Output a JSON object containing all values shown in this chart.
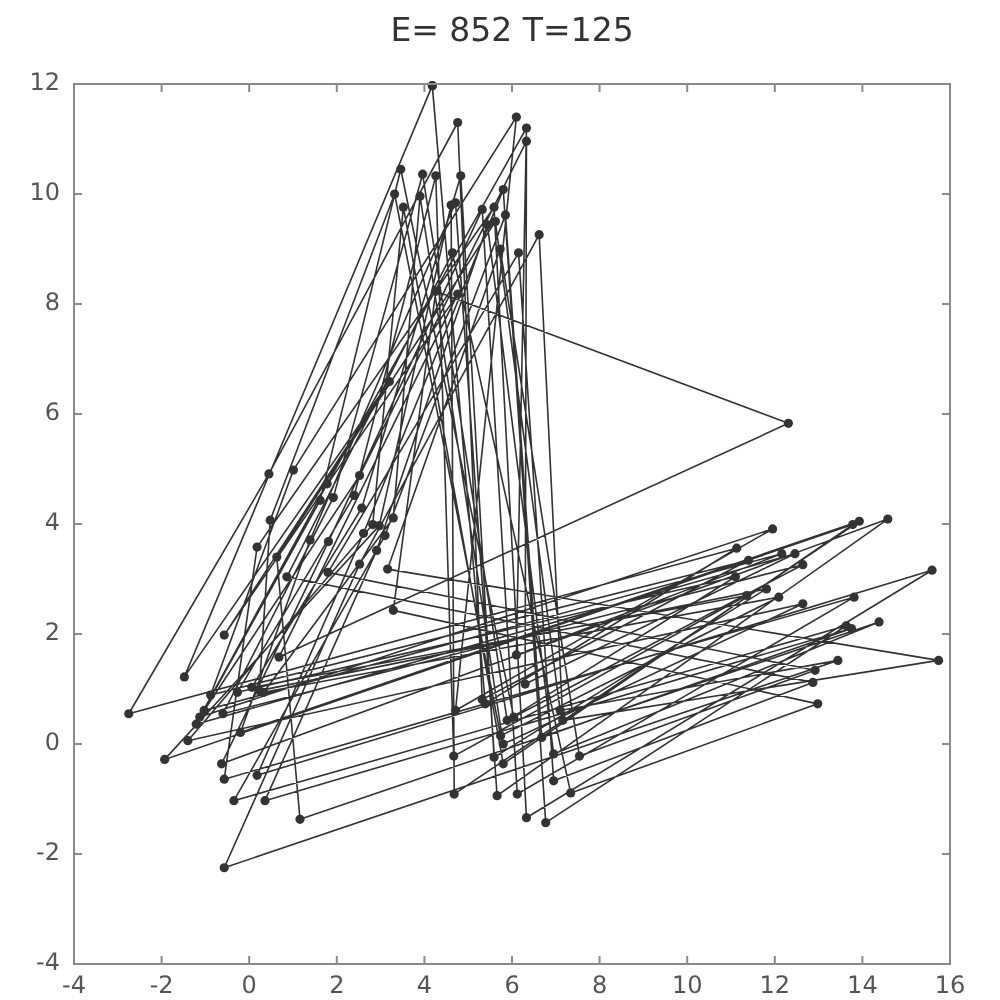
{
  "chart_data": {
    "type": "scatter",
    "title": "E= 852 T=125",
    "marker": "circle",
    "line_style": "solid",
    "x": [
      4.18,
      5.39,
      11.13,
      -2.75,
      0.45,
      4.76,
      5.32,
      11.4,
      -0.88,
      1.01,
      6.1,
      4.71,
      11.95,
      -1.13,
      1.78,
      6.33,
      6.1,
      12.16,
      -1.03,
      2.52,
      6.33,
      6.3,
      12.46,
      -1.21,
      1.62,
      3.46,
      6.04,
      12.64,
      -0.6,
      1.92,
      3.96,
      5.89,
      11.1,
      -0.27,
      2.4,
      4.26,
      4.67,
      11.36,
      0.06,
      2.57,
      4.83,
      5.59,
      11.81,
      0.23,
      0.48,
      3.32,
      5.74,
      12.09,
      0.33,
      3.29,
      3.9,
      5.8,
      12.64,
      -1.4,
      2.82,
      3.52,
      5.8,
      13.78,
      -1.93,
      2.97,
      4.61,
      4.68,
      13.93,
      -0.2,
      1.39,
      4.71,
      5.66,
      14.58,
      -0.63,
      1.81,
      5.32,
      6.12,
      13.81,
      -0.57,
      0.18,
      5.59,
      6.33,
      15.59,
      0.18,
      2.61,
      5.8,
      6.77,
      13.63,
      -0.35,
      3.1,
      5.85,
      6.68,
      13.75,
      0.36,
      2.91,
      5.44,
      6.95,
      14.38,
      1.16,
      0.63,
      5.62,
      7.1,
      13.44,
      -0.57,
      2.52,
      6.62,
      7.16,
      15.74,
      3.16,
      5.73,
      7.54,
      12.92,
      1.8,
      6.15,
      6.95,
      12.87,
      0.86,
      4.64,
      7.34,
      12.98,
      3.29,
      4.26,
      12.31,
      0.68,
      4.76,
      -0.57,
      3.2,
      -1.48,
      4.18
    ],
    "series": [
      {
        "color": "#333333",
        "values": [
          11.97,
          0.73,
          3.56,
          0.55,
          4.91,
          11.3,
          0.81,
          3.34,
          0.89,
          4.98,
          11.4,
          0.61,
          3.91,
          0.49,
          4.73,
          11.2,
          1.62,
          3.46,
          0.61,
          4.88,
          10.96,
          1.09,
          3.46,
          0.36,
          4.43,
          10.45,
          0.49,
          3.26,
          0.55,
          4.48,
          10.36,
          0.43,
          3.04,
          0.94,
          4.52,
          10.33,
          -0.22,
          2.7,
          1.03,
          4.29,
          10.33,
          -0.24,
          2.82,
          0.97,
          4.07,
          10.0,
          0.15,
          2.67,
          0.94,
          4.11,
          9.96,
          0.0,
          2.55,
          0.06,
          3.99,
          9.76,
          -0.36,
          3.99,
          -0.28,
          3.97,
          9.8,
          -0.91,
          4.05,
          0.21,
          3.71,
          9.84,
          -0.94,
          4.09,
          -0.36,
          3.68,
          9.72,
          -0.91,
          2.67,
          -0.64,
          3.58,
          9.76,
          -1.34,
          3.16,
          -0.57,
          3.83,
          10.08,
          -1.43,
          2.15,
          -1.03,
          3.79,
          9.62,
          0.12,
          2.1,
          -1.03,
          3.52,
          9.44,
          -0.18,
          2.22,
          -1.37,
          3.4,
          9.5,
          0.61,
          1.52,
          -2.25,
          3.27,
          9.26,
          0.43,
          1.52,
          3.18,
          9.0,
          -0.22,
          1.34,
          3.12,
          8.93,
          -0.67,
          1.12,
          3.04,
          8.93,
          -0.89,
          0.73,
          2.43,
          8.23,
          5.83,
          1.58,
          8.18,
          1.98,
          6.59,
          1.22,
          11.97
        ]
      }
    ],
    "xlim": [
      -4,
      16
    ],
    "ylim": [
      -4,
      12
    ],
    "xticks": [
      -4,
      -2,
      0,
      2,
      4,
      6,
      8,
      10,
      12,
      14,
      16
    ],
    "yticks": [
      -4,
      -2,
      0,
      2,
      4,
      6,
      8,
      10,
      12
    ]
  }
}
